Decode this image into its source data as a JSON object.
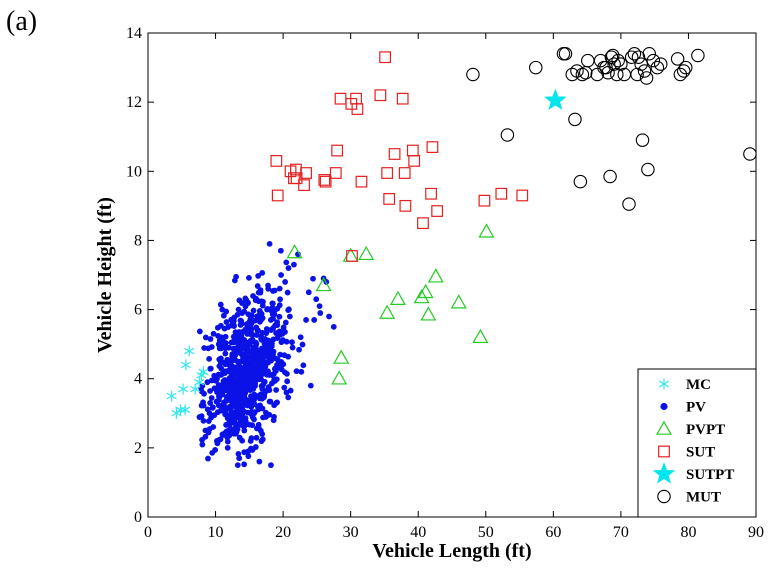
{
  "panel_label": "(a)",
  "chart_data": {
    "type": "scatter",
    "title": "",
    "xlabel": "Vehicle Length (ft)",
    "ylabel": "Vehicle Height (ft)",
    "xlim": [
      0,
      90
    ],
    "ylim": [
      0,
      14
    ],
    "xticks": [
      0,
      10,
      20,
      30,
      40,
      50,
      60,
      70,
      80,
      90
    ],
    "yticks": [
      0,
      2,
      4,
      6,
      8,
      10,
      12,
      14
    ],
    "grid": false,
    "legend_position": "bottom-right",
    "series": [
      {
        "name": "MC",
        "marker": "asterisk",
        "color": "#33e6f0",
        "points": [
          [
            3.5,
            3.5
          ],
          [
            4.2,
            3.0
          ],
          [
            4.8,
            3.1
          ],
          [
            5.2,
            3.7
          ],
          [
            5.5,
            3.1
          ],
          [
            5.6,
            4.4
          ],
          [
            6.1,
            4.8
          ],
          [
            7.0,
            3.7
          ],
          [
            7.6,
            3.9
          ],
          [
            7.9,
            4.1
          ],
          [
            8.2,
            4.2
          ]
        ]
      },
      {
        "name": "PV",
        "marker": "dot",
        "color": "#0a12e6",
        "cluster": {
          "x_range": [
            7.5,
            31
          ],
          "y_range": [
            1.5,
            8
          ],
          "center": [
            14.5,
            4.2
          ],
          "count": 800
        },
        "points": [
          [
            10.2,
            2.2
          ],
          [
            11.8,
            2.0
          ],
          [
            13.5,
            1.7
          ],
          [
            15.2,
            2.2
          ],
          [
            18.2,
            1.5
          ],
          [
            16.2,
            5.4
          ],
          [
            14.8,
            6.2
          ],
          [
            20.3,
            6.8
          ],
          [
            21.0,
            5.8
          ],
          [
            22.2,
            7.6
          ],
          [
            23.4,
            5.7
          ],
          [
            24.6,
            5.7
          ],
          [
            26.0,
            6.9
          ],
          [
            25.5,
            5.9
          ],
          [
            26.4,
            6.8
          ],
          [
            18.0,
            7.9
          ],
          [
            19.7,
            7.0
          ],
          [
            21.6,
            7.3
          ],
          [
            20.5,
            3.6
          ],
          [
            22.7,
            4.2
          ],
          [
            24.1,
            3.8
          ],
          [
            25.4,
            6.1
          ],
          [
            27.5,
            5.5
          ],
          [
            17.8,
            6.6
          ],
          [
            19.1,
            4.4
          ],
          [
            16.9,
            2.4
          ],
          [
            12.4,
            5.7
          ],
          [
            11.0,
            6.0
          ],
          [
            9.2,
            3.3
          ],
          [
            13.0,
            2.6
          ],
          [
            15.7,
            3.0
          ],
          [
            17.2,
            3.5
          ],
          [
            18.6,
            2.8
          ],
          [
            19.9,
            5.3
          ],
          [
            21.4,
            4.9
          ],
          [
            22.6,
            5.2
          ],
          [
            23.8,
            6.5
          ],
          [
            20.8,
            7.2
          ],
          [
            24.9,
            6.3
          ],
          [
            26.8,
            5.8
          ],
          [
            8.8,
            3.9
          ],
          [
            9.7,
            5.3
          ]
        ]
      },
      {
        "name": "PVPT",
        "marker": "triangle",
        "color": "#22cc22",
        "points": [
          [
            21.7,
            7.65
          ],
          [
            26.0,
            6.7
          ],
          [
            30.0,
            7.55
          ],
          [
            32.3,
            7.6
          ],
          [
            28.6,
            4.6
          ],
          [
            28.3,
            4.0
          ],
          [
            35.4,
            5.9
          ],
          [
            37.0,
            6.3
          ],
          [
            40.5,
            6.35
          ],
          [
            41.1,
            6.5
          ],
          [
            41.5,
            5.85
          ],
          [
            42.6,
            6.95
          ],
          [
            46.0,
            6.2
          ],
          [
            49.2,
            5.2
          ],
          [
            50.1,
            8.25
          ]
        ]
      },
      {
        "name": "SUT",
        "marker": "square",
        "color": "#e62020",
        "points": [
          [
            19.0,
            10.3
          ],
          [
            19.2,
            9.3
          ],
          [
            21.1,
            10.0
          ],
          [
            21.6,
            9.8
          ],
          [
            21.9,
            10.05
          ],
          [
            22.0,
            9.8
          ],
          [
            23.1,
            9.6
          ],
          [
            23.4,
            9.95
          ],
          [
            26.1,
            9.75
          ],
          [
            26.3,
            9.7
          ],
          [
            27.8,
            9.95
          ],
          [
            28.0,
            10.6
          ],
          [
            28.5,
            12.1
          ],
          [
            30.1,
            11.95
          ],
          [
            30.2,
            7.55
          ],
          [
            30.8,
            12.1
          ],
          [
            31.0,
            11.8
          ],
          [
            31.6,
            9.7
          ],
          [
            34.4,
            12.2
          ],
          [
            35.1,
            13.3
          ],
          [
            35.4,
            9.95
          ],
          [
            35.7,
            9.2
          ],
          [
            36.5,
            10.5
          ],
          [
            37.7,
            12.1
          ],
          [
            38.0,
            9.95
          ],
          [
            38.1,
            9.0
          ],
          [
            39.2,
            10.6
          ],
          [
            39.4,
            10.3
          ],
          [
            40.7,
            8.5
          ],
          [
            41.9,
            9.35
          ],
          [
            42.1,
            10.7
          ],
          [
            42.8,
            8.85
          ],
          [
            49.8,
            9.15
          ],
          [
            52.3,
            9.35
          ],
          [
            55.4,
            9.3
          ]
        ]
      },
      {
        "name": "SUTPT",
        "marker": "star",
        "color": "#00e5ee",
        "points": [
          [
            60.3,
            12.05
          ]
        ]
      },
      {
        "name": "MUT",
        "marker": "circle",
        "color": "#000000",
        "points": [
          [
            48.1,
            12.8
          ],
          [
            53.2,
            11.05
          ],
          [
            57.4,
            13.0
          ],
          [
            61.5,
            13.4
          ],
          [
            61.8,
            13.4
          ],
          [
            62.8,
            12.8
          ],
          [
            63.2,
            11.5
          ],
          [
            63.5,
            12.9
          ],
          [
            64.0,
            9.7
          ],
          [
            64.3,
            12.8
          ],
          [
            64.8,
            12.85
          ],
          [
            65.1,
            13.2
          ],
          [
            66.5,
            12.8
          ],
          [
            67.0,
            13.2
          ],
          [
            67.5,
            13.0
          ],
          [
            67.8,
            13.0
          ],
          [
            68.1,
            12.85
          ],
          [
            68.4,
            9.85
          ],
          [
            68.6,
            13.3
          ],
          [
            68.8,
            13.35
          ],
          [
            69.0,
            13.1
          ],
          [
            69.4,
            12.8
          ],
          [
            69.6,
            13.2
          ],
          [
            70.0,
            13.1
          ],
          [
            70.5,
            12.8
          ],
          [
            71.2,
            9.05
          ],
          [
            71.6,
            13.3
          ],
          [
            72.0,
            13.4
          ],
          [
            72.4,
            12.8
          ],
          [
            72.6,
            13.3
          ],
          [
            73.0,
            13.1
          ],
          [
            73.2,
            10.9
          ],
          [
            73.5,
            12.9
          ],
          [
            73.8,
            12.7
          ],
          [
            74.0,
            10.05
          ],
          [
            74.2,
            13.4
          ],
          [
            74.8,
            13.2
          ],
          [
            75.4,
            13.0
          ],
          [
            75.9,
            13.1
          ],
          [
            78.4,
            13.25
          ],
          [
            78.8,
            12.8
          ],
          [
            79.3,
            12.9
          ],
          [
            79.6,
            13.0
          ],
          [
            81.4,
            13.35
          ],
          [
            89.1,
            10.5
          ]
        ]
      }
    ]
  }
}
